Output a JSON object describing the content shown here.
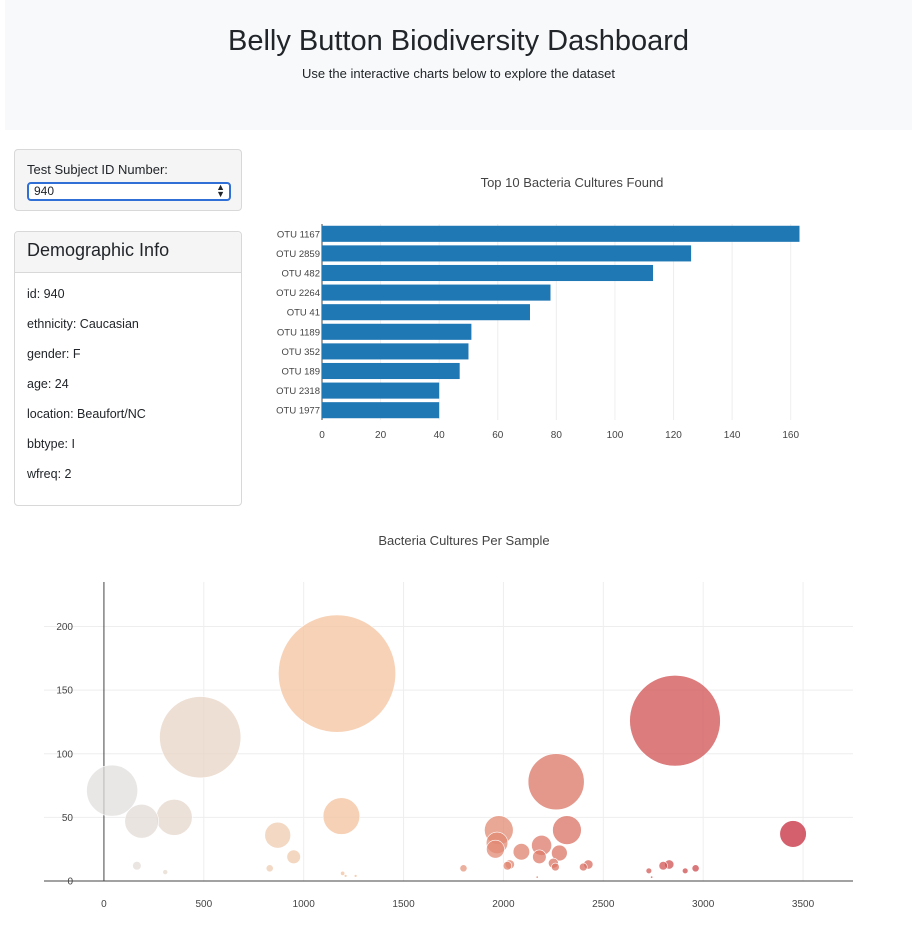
{
  "header": {
    "title": "Belly Button Biodiversity Dashboard",
    "subtitle": "Use the interactive charts below to explore the dataset"
  },
  "selector": {
    "label": "Test Subject ID Number:",
    "selected": "940"
  },
  "demographics": {
    "title": "Demographic Info",
    "rows": [
      "id: 940",
      "ethnicity: Caucasian",
      "gender: F",
      "age: 24",
      "location: Beaufort/NC",
      "bbtype: I",
      "wfreq: 2"
    ]
  },
  "chart_data": [
    {
      "type": "bar",
      "orientation": "horizontal",
      "title": "Top 10 Bacteria Cultures Found",
      "categories": [
        "OTU 1167",
        "OTU 2859",
        "OTU 482",
        "OTU 2264",
        "OTU 41",
        "OTU 1189",
        "OTU 352",
        "OTU 189",
        "OTU 2318",
        "OTU 1977"
      ],
      "values": [
        163,
        126,
        113,
        78,
        71,
        51,
        50,
        47,
        40,
        40
      ],
      "xlim": [
        0,
        170
      ],
      "xticks": [
        0,
        20,
        40,
        60,
        80,
        100,
        120,
        140,
        160
      ],
      "grid": true,
      "color": "#1f77b4"
    },
    {
      "type": "scatter",
      "subtype": "bubble",
      "title": "Bacteria Cultures Per Sample",
      "xlim": [
        -300,
        3750
      ],
      "ylim": [
        0,
        235
      ],
      "xticks": [
        0,
        500,
        1000,
        1500,
        2000,
        2500,
        3000,
        3500
      ],
      "yticks": [
        0,
        50,
        100,
        150,
        200
      ],
      "grid": true,
      "colorscale": "RdGy-reversed",
      "points": [
        {
          "x": 41,
          "y": 71
        },
        {
          "x": 189,
          "y": 47
        },
        {
          "x": 352,
          "y": 50
        },
        {
          "x": 482,
          "y": 113
        },
        {
          "x": 165,
          "y": 12
        },
        {
          "x": 307,
          "y": 7
        },
        {
          "x": 870,
          "y": 36
        },
        {
          "x": 950,
          "y": 19
        },
        {
          "x": 830,
          "y": 10
        },
        {
          "x": 1167,
          "y": 163
        },
        {
          "x": 1189,
          "y": 51
        },
        {
          "x": 1195,
          "y": 6
        },
        {
          "x": 1210,
          "y": 4
        },
        {
          "x": 1260,
          "y": 4
        },
        {
          "x": 1800,
          "y": 10
        },
        {
          "x": 1977,
          "y": 40
        },
        {
          "x": 1968,
          "y": 30
        },
        {
          "x": 1960,
          "y": 25
        },
        {
          "x": 2020,
          "y": 12
        },
        {
          "x": 2032,
          "y": 13
        },
        {
          "x": 2090,
          "y": 23
        },
        {
          "x": 2191,
          "y": 28
        },
        {
          "x": 2180,
          "y": 19
        },
        {
          "x": 2169,
          "y": 3
        },
        {
          "x": 2264,
          "y": 78
        },
        {
          "x": 2250,
          "y": 14
        },
        {
          "x": 2260,
          "y": 11
        },
        {
          "x": 2280,
          "y": 22
        },
        {
          "x": 2318,
          "y": 40
        },
        {
          "x": 2400,
          "y": 11
        },
        {
          "x": 2425,
          "y": 13
        },
        {
          "x": 2728,
          "y": 8
        },
        {
          "x": 2742,
          "y": 3
        },
        {
          "x": 2800,
          "y": 12
        },
        {
          "x": 2830,
          "y": 13
        },
        {
          "x": 2859,
          "y": 126
        },
        {
          "x": 2910,
          "y": 8
        },
        {
          "x": 2962,
          "y": 10
        },
        {
          "x": 3450,
          "y": 37
        }
      ]
    }
  ]
}
